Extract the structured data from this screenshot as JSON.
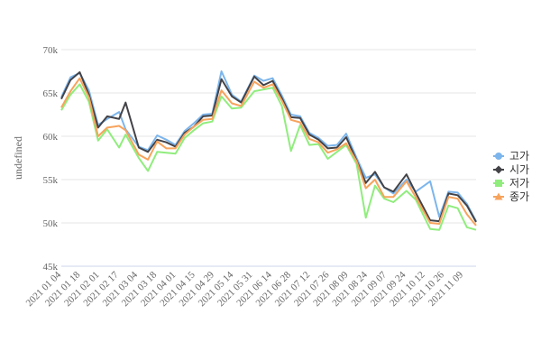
{
  "chart_data": {
    "type": "line",
    "ylabel": "undefined",
    "ylim": [
      45000,
      70000
    ],
    "yticks": [
      45000,
      50000,
      55000,
      60000,
      65000,
      70000
    ],
    "ytick_labels": [
      "45k",
      "50k",
      "55k",
      "60k",
      "65k",
      "70k"
    ],
    "xlim": [
      "2021-01-04",
      "2021-11-16"
    ],
    "xtick_labels": [
      "2021 01 04",
      "2021 01 18",
      "2021 02 01",
      "2021 02 17",
      "2021 03 04",
      "2021 03 18",
      "2021 04 01",
      "2021 04 15",
      "2021 04 29",
      "2021 05 14",
      "2021 05 31",
      "2021 06 14",
      "2021 06 28",
      "2021 07 12",
      "2021 07 26",
      "2021 08 09",
      "2021 08 24",
      "2021 09 07",
      "2021 09 24",
      "2021 10 12",
      "2021 10 26",
      "2021 11 09"
    ],
    "grid": true,
    "legend_position": "right",
    "x": [
      "2021-01-04",
      "2021-01-11",
      "2021-01-18",
      "2021-01-25",
      "2021-02-01",
      "2021-02-08",
      "2021-02-17",
      "2021-02-22",
      "2021-03-04",
      "2021-03-11",
      "2021-03-18",
      "2021-03-25",
      "2021-04-01",
      "2021-04-08",
      "2021-04-15",
      "2021-04-22",
      "2021-04-29",
      "2021-05-06",
      "2021-05-14",
      "2021-05-21",
      "2021-05-31",
      "2021-06-07",
      "2021-06-14",
      "2021-06-21",
      "2021-06-28",
      "2021-07-05",
      "2021-07-12",
      "2021-07-19",
      "2021-07-26",
      "2021-08-02",
      "2021-08-09",
      "2021-08-17",
      "2021-08-24",
      "2021-08-31",
      "2021-09-07",
      "2021-09-14",
      "2021-09-24",
      "2021-10-01",
      "2021-10-12",
      "2021-10-19",
      "2021-10-26",
      "2021-11-02",
      "2021-11-09",
      "2021-11-16"
    ],
    "series": [
      {
        "name": "고가",
        "color": "#7cb5ec",
        "marker": "circle",
        "values": [
          64500,
          66800,
          67300,
          65300,
          61300,
          62000,
          62800,
          60800,
          58800,
          58400,
          60100,
          59600,
          59000,
          60600,
          61500,
          62500,
          62600,
          67500,
          64800,
          64000,
          67000,
          66400,
          66700,
          64700,
          62500,
          62300,
          60400,
          59800,
          58900,
          59000,
          60300,
          57500,
          55200,
          55600,
          54100,
          53400,
          55000,
          53600,
          54800,
          50700,
          53600,
          53500,
          52200,
          50200
        ]
      },
      {
        "name": "시가",
        "color": "#434348",
        "marker": "diamond",
        "values": [
          64300,
          66500,
          67400,
          64800,
          61000,
          62300,
          62000,
          63900,
          58700,
          58200,
          59600,
          59300,
          58800,
          60400,
          61100,
          62300,
          62400,
          66600,
          64600,
          63900,
          66900,
          65900,
          66400,
          64400,
          62200,
          62100,
          60200,
          59600,
          58600,
          58700,
          59900,
          57200,
          54600,
          55900,
          54100,
          53600,
          55600,
          53500,
          50300,
          50200,
          53400,
          53200,
          52000,
          50100
        ]
      },
      {
        "name": "저가",
        "color": "#90ed7d",
        "marker": "square",
        "values": [
          63000,
          64800,
          66000,
          64000,
          59500,
          60800,
          58700,
          60200,
          57500,
          56000,
          58200,
          58100,
          58000,
          59800,
          60700,
          61500,
          61700,
          64600,
          63200,
          63300,
          65200,
          65400,
          65600,
          63500,
          58300,
          61300,
          59000,
          59100,
          57400,
          58200,
          59000,
          56800,
          50600,
          54300,
          52800,
          52400,
          53700,
          52700,
          49300,
          49200,
          52000,
          51700,
          49500,
          49200
        ]
      },
      {
        "name": "종가",
        "color": "#f7a35c",
        "marker": "triangle",
        "values": [
          63300,
          65200,
          66700,
          64500,
          60000,
          61000,
          61200,
          60700,
          57900,
          57300,
          59400,
          58600,
          58600,
          60200,
          61100,
          61900,
          62000,
          65300,
          63800,
          63500,
          66300,
          65600,
          66000,
          64100,
          61900,
          61600,
          59700,
          59300,
          58100,
          58500,
          59200,
          57100,
          54000,
          55000,
          53000,
          53000,
          54800,
          53000,
          50000,
          49900,
          53000,
          52800,
          51000,
          49700
        ]
      }
    ]
  }
}
